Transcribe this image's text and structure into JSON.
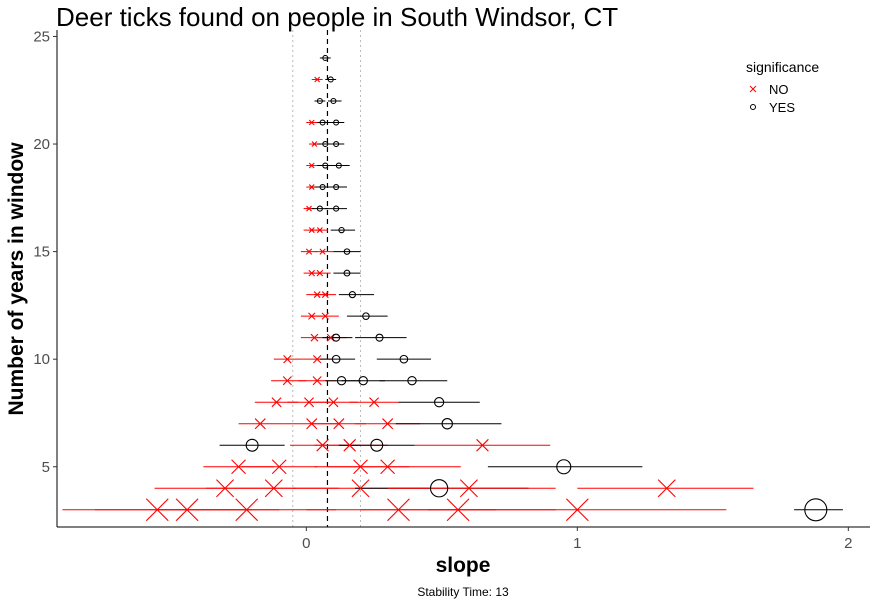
{
  "chart_data": {
    "type": "scatter",
    "title": "Deer ticks found on people in South Windsor, CT",
    "xlabel": "slope",
    "ylabel": "Number of years in window",
    "caption": "Stability Time: 13",
    "xlim": [
      -0.92,
      2.08
    ],
    "ylim": [
      2.2,
      25.3
    ],
    "x_ticks": [
      0,
      1,
      2
    ],
    "y_ticks": [
      5,
      10,
      15,
      20,
      25
    ],
    "grid": false,
    "reference_lines": {
      "dashed": 0.078,
      "dotted": [
        -0.05,
        0.2
      ]
    },
    "legend": {
      "title": "significance",
      "position": "top-right",
      "entries": [
        {
          "label": "NO",
          "marker": "x",
          "color": "#ff0000"
        },
        {
          "label": "YES",
          "marker": "o",
          "color": "#000000"
        }
      ]
    },
    "points": [
      {
        "n": 24,
        "slope": 0.07,
        "lo": 0.05,
        "hi": 0.09,
        "sig": "YES"
      },
      {
        "n": 23,
        "slope": 0.04,
        "lo": 0.02,
        "hi": 0.06,
        "sig": "NO"
      },
      {
        "n": 23,
        "slope": 0.09,
        "lo": 0.07,
        "hi": 0.11,
        "sig": "YES"
      },
      {
        "n": 22,
        "slope": 0.05,
        "lo": 0.03,
        "hi": 0.07,
        "sig": "YES"
      },
      {
        "n": 22,
        "slope": 0.1,
        "lo": 0.08,
        "hi": 0.13,
        "sig": "YES"
      },
      {
        "n": 21,
        "slope": 0.02,
        "lo": 0.0,
        "hi": 0.04,
        "sig": "NO"
      },
      {
        "n": 21,
        "slope": 0.06,
        "lo": 0.04,
        "hi": 0.09,
        "sig": "YES"
      },
      {
        "n": 21,
        "slope": 0.11,
        "lo": 0.08,
        "hi": 0.14,
        "sig": "YES"
      },
      {
        "n": 20,
        "slope": 0.03,
        "lo": 0.01,
        "hi": 0.05,
        "sig": "NO"
      },
      {
        "n": 20,
        "slope": 0.07,
        "lo": 0.04,
        "hi": 0.1,
        "sig": "YES"
      },
      {
        "n": 20,
        "slope": 0.11,
        "lo": 0.08,
        "hi": 0.14,
        "sig": "YES"
      },
      {
        "n": 19,
        "slope": 0.02,
        "lo": 0.0,
        "hi": 0.04,
        "sig": "NO"
      },
      {
        "n": 19,
        "slope": 0.07,
        "lo": 0.04,
        "hi": 0.1,
        "sig": "YES"
      },
      {
        "n": 19,
        "slope": 0.12,
        "lo": 0.09,
        "hi": 0.16,
        "sig": "YES"
      },
      {
        "n": 18,
        "slope": 0.02,
        "lo": 0.0,
        "hi": 0.04,
        "sig": "NO"
      },
      {
        "n": 18,
        "slope": 0.06,
        "lo": 0.03,
        "hi": 0.09,
        "sig": "YES"
      },
      {
        "n": 18,
        "slope": 0.11,
        "lo": 0.08,
        "hi": 0.15,
        "sig": "YES"
      },
      {
        "n": 17,
        "slope": 0.01,
        "lo": -0.01,
        "hi": 0.03,
        "sig": "NO"
      },
      {
        "n": 17,
        "slope": 0.05,
        "lo": 0.02,
        "hi": 0.08,
        "sig": "YES"
      },
      {
        "n": 17,
        "slope": 0.11,
        "lo": 0.07,
        "hi": 0.15,
        "sig": "YES"
      },
      {
        "n": 16,
        "slope": 0.02,
        "lo": -0.01,
        "hi": 0.05,
        "sig": "NO"
      },
      {
        "n": 16,
        "slope": 0.05,
        "lo": 0.02,
        "hi": 0.08,
        "sig": "NO"
      },
      {
        "n": 16,
        "slope": 0.13,
        "lo": 0.09,
        "hi": 0.18,
        "sig": "YES"
      },
      {
        "n": 15,
        "slope": 0.01,
        "lo": -0.02,
        "hi": 0.04,
        "sig": "NO"
      },
      {
        "n": 15,
        "slope": 0.06,
        "lo": 0.03,
        "hi": 0.1,
        "sig": "NO"
      },
      {
        "n": 15,
        "slope": 0.15,
        "lo": 0.1,
        "hi": 0.2,
        "sig": "YES"
      },
      {
        "n": 14,
        "slope": 0.02,
        "lo": -0.01,
        "hi": 0.05,
        "sig": "NO"
      },
      {
        "n": 14,
        "slope": 0.05,
        "lo": 0.02,
        "hi": 0.09,
        "sig": "NO"
      },
      {
        "n": 14,
        "slope": 0.15,
        "lo": 0.1,
        "hi": 0.2,
        "sig": "YES"
      },
      {
        "n": 13,
        "slope": 0.04,
        "lo": 0.0,
        "hi": 0.08,
        "sig": "NO"
      },
      {
        "n": 13,
        "slope": 0.07,
        "lo": 0.03,
        "hi": 0.11,
        "sig": "NO"
      },
      {
        "n": 13,
        "slope": 0.17,
        "lo": 0.12,
        "hi": 0.25,
        "sig": "YES"
      },
      {
        "n": 12,
        "slope": 0.02,
        "lo": -0.02,
        "hi": 0.06,
        "sig": "NO"
      },
      {
        "n": 12,
        "slope": 0.07,
        "lo": 0.02,
        "hi": 0.12,
        "sig": "NO"
      },
      {
        "n": 12,
        "slope": 0.22,
        "lo": 0.15,
        "hi": 0.3,
        "sig": "YES"
      },
      {
        "n": 11,
        "slope": 0.03,
        "lo": -0.02,
        "hi": 0.08,
        "sig": "NO"
      },
      {
        "n": 11,
        "slope": 0.09,
        "lo": 0.04,
        "hi": 0.15,
        "sig": "NO"
      },
      {
        "n": 11,
        "slope": 0.11,
        "lo": 0.06,
        "hi": 0.17,
        "sig": "YES"
      },
      {
        "n": 11,
        "slope": 0.27,
        "lo": 0.18,
        "hi": 0.37,
        "sig": "YES"
      },
      {
        "n": 10,
        "slope": -0.07,
        "lo": -0.12,
        "hi": -0.01,
        "sig": "NO"
      },
      {
        "n": 10,
        "slope": 0.04,
        "lo": -0.01,
        "hi": 0.1,
        "sig": "NO"
      },
      {
        "n": 10,
        "slope": 0.11,
        "lo": 0.05,
        "hi": 0.18,
        "sig": "YES"
      },
      {
        "n": 10,
        "slope": 0.36,
        "lo": 0.26,
        "hi": 0.46,
        "sig": "YES"
      },
      {
        "n": 9,
        "slope": -0.07,
        "lo": -0.13,
        "hi": 0.0,
        "sig": "NO"
      },
      {
        "n": 9,
        "slope": 0.04,
        "lo": -0.03,
        "hi": 0.11,
        "sig": "NO"
      },
      {
        "n": 9,
        "slope": 0.13,
        "lo": 0.07,
        "hi": 0.2,
        "sig": "YES"
      },
      {
        "n": 9,
        "slope": 0.21,
        "lo": 0.13,
        "hi": 0.29,
        "sig": "YES"
      },
      {
        "n": 9,
        "slope": 0.39,
        "lo": 0.27,
        "hi": 0.52,
        "sig": "YES"
      },
      {
        "n": 8,
        "slope": -0.11,
        "lo": -0.19,
        "hi": -0.03,
        "sig": "NO"
      },
      {
        "n": 8,
        "slope": 0.01,
        "lo": -0.07,
        "hi": 0.09,
        "sig": "NO"
      },
      {
        "n": 8,
        "slope": 0.1,
        "lo": 0.02,
        "hi": 0.19,
        "sig": "NO"
      },
      {
        "n": 8,
        "slope": 0.25,
        "lo": 0.16,
        "hi": 0.34,
        "sig": "NO"
      },
      {
        "n": 8,
        "slope": 0.49,
        "lo": 0.34,
        "hi": 0.64,
        "sig": "YES"
      },
      {
        "n": 7,
        "slope": -0.17,
        "lo": -0.25,
        "hi": -0.08,
        "sig": "NO"
      },
      {
        "n": 7,
        "slope": 0.02,
        "lo": -0.08,
        "hi": 0.12,
        "sig": "NO"
      },
      {
        "n": 7,
        "slope": 0.12,
        "lo": 0.02,
        "hi": 0.22,
        "sig": "NO"
      },
      {
        "n": 7,
        "slope": 0.3,
        "lo": 0.18,
        "hi": 0.42,
        "sig": "NO"
      },
      {
        "n": 7,
        "slope": 0.52,
        "lo": 0.33,
        "hi": 0.72,
        "sig": "YES"
      },
      {
        "n": 6,
        "slope": -0.2,
        "lo": -0.32,
        "hi": -0.08,
        "sig": "YES"
      },
      {
        "n": 6,
        "slope": 0.06,
        "lo": -0.06,
        "hi": 0.2,
        "sig": "NO"
      },
      {
        "n": 6,
        "slope": 0.16,
        "lo": 0.03,
        "hi": 0.3,
        "sig": "NO"
      },
      {
        "n": 6,
        "slope": 0.26,
        "lo": 0.12,
        "hi": 0.4,
        "sig": "YES"
      },
      {
        "n": 6,
        "slope": 0.65,
        "lo": 0.4,
        "hi": 0.9,
        "sig": "NO"
      },
      {
        "n": 5,
        "slope": -0.25,
        "lo": -0.38,
        "hi": -0.12,
        "sig": "NO"
      },
      {
        "n": 5,
        "slope": -0.1,
        "lo": -0.24,
        "hi": 0.04,
        "sig": "NO"
      },
      {
        "n": 5,
        "slope": 0.2,
        "lo": 0.03,
        "hi": 0.38,
        "sig": "NO"
      },
      {
        "n": 5,
        "slope": 0.3,
        "lo": 0.08,
        "hi": 0.57,
        "sig": "NO"
      },
      {
        "n": 5,
        "slope": 0.95,
        "lo": 0.67,
        "hi": 1.24,
        "sig": "YES"
      },
      {
        "n": 4,
        "slope": -0.3,
        "lo": -0.56,
        "hi": -0.04,
        "sig": "NO"
      },
      {
        "n": 4,
        "slope": -0.12,
        "lo": -0.37,
        "hi": 0.12,
        "sig": "NO"
      },
      {
        "n": 4,
        "slope": 0.2,
        "lo": -0.05,
        "hi": 0.46,
        "sig": "NO"
      },
      {
        "n": 4,
        "slope": 0.49,
        "lo": 0.18,
        "hi": 0.82,
        "sig": "YES"
      },
      {
        "n": 4,
        "slope": 0.6,
        "lo": 0.3,
        "hi": 0.92,
        "sig": "NO"
      },
      {
        "n": 4,
        "slope": 1.33,
        "lo": 1.0,
        "hi": 1.65,
        "sig": "NO"
      },
      {
        "n": 3,
        "slope": -0.55,
        "lo": -0.9,
        "hi": -0.2,
        "sig": "NO"
      },
      {
        "n": 3,
        "slope": -0.44,
        "lo": -0.78,
        "hi": -0.1,
        "sig": "NO"
      },
      {
        "n": 3,
        "slope": -0.22,
        "lo": -0.55,
        "hi": 0.11,
        "sig": "NO"
      },
      {
        "n": 3,
        "slope": 0.34,
        "lo": 0.0,
        "hi": 0.7,
        "sig": "NO"
      },
      {
        "n": 3,
        "slope": 0.56,
        "lo": 0.2,
        "hi": 0.92,
        "sig": "NO"
      },
      {
        "n": 3,
        "slope": 1.0,
        "lo": 0.45,
        "hi": 1.55,
        "sig": "NO"
      },
      {
        "n": 3,
        "slope": 1.88,
        "lo": 1.8,
        "hi": 1.98,
        "sig": "YES"
      }
    ]
  }
}
